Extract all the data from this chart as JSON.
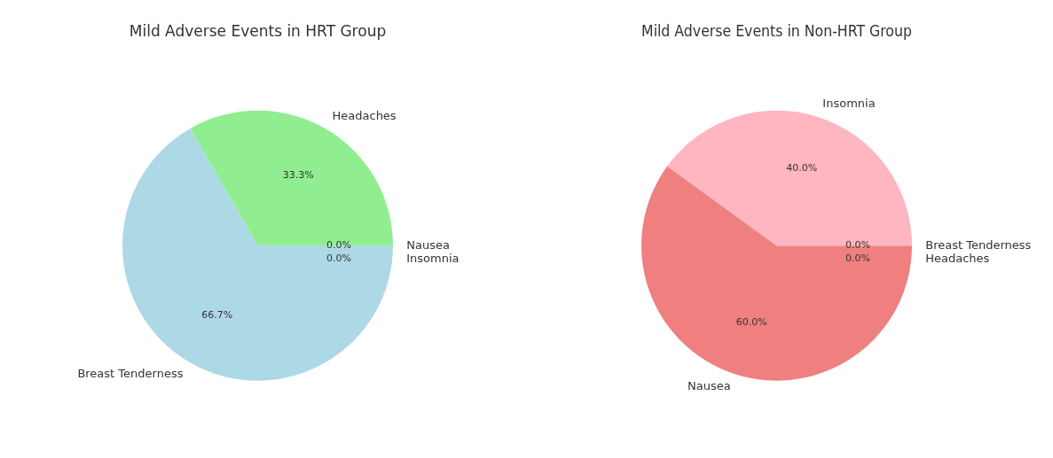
{
  "chart_data": [
    {
      "type": "pie",
      "title": "Mild Adverse Events in HRT Group",
      "categories": [
        "Breast Tenderness",
        "Headaches",
        "Nausea",
        "Insomnia"
      ],
      "values": [
        66.7,
        33.3,
        0,
        0
      ],
      "colors": [
        "#add8e6",
        "#90ee90",
        "#f08080",
        "#ffb6c1"
      ],
      "value_labels": [
        "66.7%",
        "33.3%",
        "0.0%",
        "0.0%"
      ],
      "legend": false
    },
    {
      "type": "pie",
      "title": "Mild Adverse Events in Non-HRT Group",
      "categories": [
        "Nausea",
        "Insomnia",
        "Breast Tenderness",
        "Headaches"
      ],
      "values": [
        60,
        40,
        0,
        0
      ],
      "colors": [
        "#f08080",
        "#ffb6c1",
        "#add8e6",
        "#90ee90"
      ],
      "value_labels": [
        "60.0%",
        "40.0%",
        "0.0%",
        "0.0%"
      ],
      "legend": false
    }
  ]
}
